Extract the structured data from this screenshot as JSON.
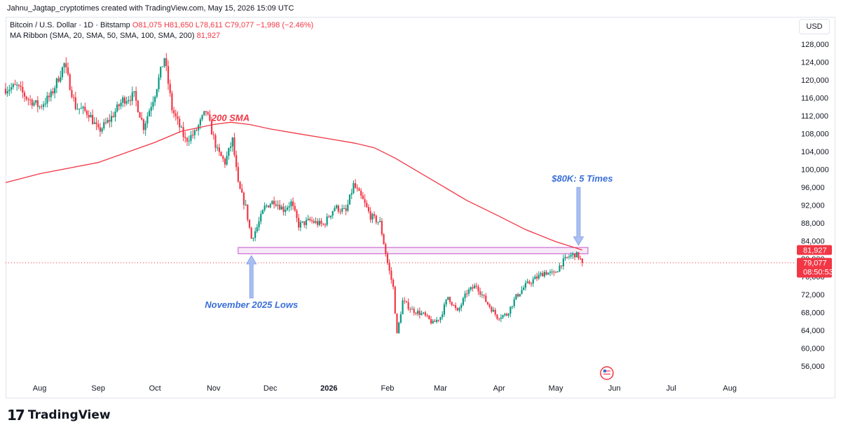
{
  "header": {
    "creator": "Jahnu_Jagtap_cryptotimes created with TradingView.com, May 15, 2026 15:09 UTC",
    "symbol": "Bitcoin / U.S. Dollar · 1D · Bitstamp",
    "ohlc": "O81,075  H81,650  L78,611  C79,077  −1,998 (−2.46%)",
    "indicator_name": "MA Ribbon (SMA, 20, SMA, 50, SMA, 100, SMA, 200)",
    "indicator_value": "81,927",
    "currency": "USD"
  },
  "footer": {
    "brand": "TradingView",
    "logo_mark": "17"
  },
  "colors": {
    "up": "#089981",
    "down": "#f23645",
    "sma": "#f23645",
    "annotation": "#3a6fd8",
    "zone": "#c054c8"
  },
  "chart_data": {
    "type": "candlestick",
    "title": "",
    "y_axis": {
      "range": [
        53000,
        130000
      ],
      "ticks": [
        {
          "value": 56000,
          "label": "56,000"
        },
        {
          "value": 60000,
          "label": "60,000"
        },
        {
          "value": 64000,
          "label": "64,000"
        },
        {
          "value": 68000,
          "label": "68,000"
        },
        {
          "value": 72000,
          "label": "72,000"
        },
        {
          "value": 76000,
          "label": "76,000"
        },
        {
          "value": 80000,
          "label": "80,000"
        },
        {
          "value": 84000,
          "label": "84,000"
        },
        {
          "value": 88000,
          "label": "88,000"
        },
        {
          "value": 92000,
          "label": "92,000"
        },
        {
          "value": 96000,
          "label": "96,000"
        },
        {
          "value": 100000,
          "label": "100,000"
        },
        {
          "value": 104000,
          "label": "104,000"
        },
        {
          "value": 108000,
          "label": "108,000"
        },
        {
          "value": 112000,
          "label": "112,000"
        },
        {
          "value": 116000,
          "label": "116,000"
        },
        {
          "value": 120000,
          "label": "120,000"
        },
        {
          "value": 124000,
          "label": "124,000"
        },
        {
          "value": 128000,
          "label": "128,000"
        }
      ]
    },
    "x_axis": {
      "range": [
        "2025-07-14",
        "2026-09-04"
      ],
      "ticks": [
        {
          "date": "2025-08-01",
          "label": "Aug"
        },
        {
          "date": "2025-09-01",
          "label": "Sep"
        },
        {
          "date": "2025-10-01",
          "label": "Oct"
        },
        {
          "date": "2025-11-01",
          "label": "Nov"
        },
        {
          "date": "2025-12-01",
          "label": "Dec"
        },
        {
          "date": "2026-01-01",
          "label": "2026"
        },
        {
          "date": "2026-02-01",
          "label": "Feb"
        },
        {
          "date": "2026-03-01",
          "label": "Mar"
        },
        {
          "date": "2026-04-01",
          "label": "Apr"
        },
        {
          "date": "2026-05-01",
          "label": "May"
        },
        {
          "date": "2026-06-01",
          "label": "Jun"
        },
        {
          "date": "2026-07-01",
          "label": "Jul"
        },
        {
          "date": "2026-08-01",
          "label": "Aug"
        }
      ]
    },
    "price_series": [
      {
        "date": "2025-07-14",
        "close": 118000
      },
      {
        "date": "2025-07-20",
        "close": 118500
      },
      {
        "date": "2025-07-25",
        "close": 116000
      },
      {
        "date": "2025-08-01",
        "close": 114000
      },
      {
        "date": "2025-08-07",
        "close": 116500
      },
      {
        "date": "2025-08-14",
        "close": 123500
      },
      {
        "date": "2025-08-20",
        "close": 114000
      },
      {
        "date": "2025-08-27",
        "close": 112500
      },
      {
        "date": "2025-09-01",
        "close": 108500
      },
      {
        "date": "2025-09-07",
        "close": 111000
      },
      {
        "date": "2025-09-14",
        "close": 115500
      },
      {
        "date": "2025-09-20",
        "close": 116500
      },
      {
        "date": "2025-09-25",
        "close": 109500
      },
      {
        "date": "2025-10-01",
        "close": 117000
      },
      {
        "date": "2025-10-06",
        "close": 125000
      },
      {
        "date": "2025-10-10",
        "close": 113500
      },
      {
        "date": "2025-10-17",
        "close": 106500
      },
      {
        "date": "2025-10-22",
        "close": 108000
      },
      {
        "date": "2025-10-28",
        "close": 113000
      },
      {
        "date": "2025-11-03",
        "close": 104000
      },
      {
        "date": "2025-11-07",
        "close": 101500
      },
      {
        "date": "2025-11-11",
        "close": 106500
      },
      {
        "date": "2025-11-14",
        "close": 96500
      },
      {
        "date": "2025-11-18",
        "close": 91500
      },
      {
        "date": "2025-11-21",
        "close": 84500
      },
      {
        "date": "2025-11-24",
        "close": 87000
      },
      {
        "date": "2025-11-28",
        "close": 91500
      },
      {
        "date": "2025-12-03",
        "close": 93000
      },
      {
        "date": "2025-12-08",
        "close": 91000
      },
      {
        "date": "2025-12-12",
        "close": 92500
      },
      {
        "date": "2025-12-16",
        "close": 87500
      },
      {
        "date": "2025-12-22",
        "close": 88500
      },
      {
        "date": "2025-12-29",
        "close": 87500
      },
      {
        "date": "2026-01-04",
        "close": 91500
      },
      {
        "date": "2026-01-10",
        "close": 90500
      },
      {
        "date": "2026-01-14",
        "close": 96500
      },
      {
        "date": "2026-01-19",
        "close": 93000
      },
      {
        "date": "2026-01-23",
        "close": 89500
      },
      {
        "date": "2026-01-28",
        "close": 88000
      },
      {
        "date": "2026-02-01",
        "close": 79000
      },
      {
        "date": "2026-02-04",
        "close": 73500
      },
      {
        "date": "2026-02-06",
        "close": 63000
      },
      {
        "date": "2026-02-09",
        "close": 70500
      },
      {
        "date": "2026-02-14",
        "close": 68500
      },
      {
        "date": "2026-02-20",
        "close": 67500
      },
      {
        "date": "2026-02-25",
        "close": 65500
      },
      {
        "date": "2026-03-01",
        "close": 67000
      },
      {
        "date": "2026-03-05",
        "close": 71500
      },
      {
        "date": "2026-03-10",
        "close": 68000
      },
      {
        "date": "2026-03-15",
        "close": 72500
      },
      {
        "date": "2026-03-20",
        "close": 74000
      },
      {
        "date": "2026-03-25",
        "close": 70500
      },
      {
        "date": "2026-03-31",
        "close": 67000
      },
      {
        "date": "2026-04-05",
        "close": 67500
      },
      {
        "date": "2026-04-10",
        "close": 71500
      },
      {
        "date": "2026-04-15",
        "close": 74000
      },
      {
        "date": "2026-04-20",
        "close": 75500
      },
      {
        "date": "2026-04-25",
        "close": 77000
      },
      {
        "date": "2026-04-30",
        "close": 76500
      },
      {
        "date": "2026-05-04",
        "close": 79000
      },
      {
        "date": "2026-05-08",
        "close": 80500
      },
      {
        "date": "2026-05-11",
        "close": 81000
      },
      {
        "date": "2026-05-13",
        "close": 80500
      },
      {
        "date": "2026-05-15",
        "close": 79077
      }
    ],
    "sma200": [
      {
        "date": "2025-07-14",
        "value": 97000
      },
      {
        "date": "2025-08-01",
        "value": 99000
      },
      {
        "date": "2025-09-01",
        "value": 101500
      },
      {
        "date": "2025-10-01",
        "value": 106000
      },
      {
        "date": "2025-10-15",
        "value": 108500
      },
      {
        "date": "2025-11-01",
        "value": 110000
      },
      {
        "date": "2025-11-10",
        "value": 110500
      },
      {
        "date": "2025-11-20",
        "value": 110000
      },
      {
        "date": "2025-12-01",
        "value": 109000
      },
      {
        "date": "2025-12-15",
        "value": 108000
      },
      {
        "date": "2026-01-01",
        "value": 106800
      },
      {
        "date": "2026-01-15",
        "value": 105800
      },
      {
        "date": "2026-01-25",
        "value": 104800
      },
      {
        "date": "2026-02-05",
        "value": 102500
      },
      {
        "date": "2026-02-15",
        "value": 100000
      },
      {
        "date": "2026-03-01",
        "value": 96500
      },
      {
        "date": "2026-03-15",
        "value": 93000
      },
      {
        "date": "2026-04-01",
        "value": 89500
      },
      {
        "date": "2026-04-15",
        "value": 86500
      },
      {
        "date": "2026-05-01",
        "value": 83800
      },
      {
        "date": "2026-05-15",
        "value": 81927
      }
    ],
    "support_zone": {
      "from_date": "2025-11-14",
      "to_date": "2026-05-18",
      "low": 81100,
      "high": 82500
    },
    "annotations": [
      {
        "text": "200 SMA",
        "date": "2025-11-10",
        "value": 110800
      },
      {
        "text": "$80K: 5 Times",
        "date": "2026-05-15",
        "value": 97200,
        "arrow_to_date": "2026-05-13",
        "arrow_to_value": 83000
      },
      {
        "text": "November 2025 Lows",
        "date": "2025-11-21",
        "value": 69000,
        "arrow_to_date": "2025-11-21",
        "arrow_to_value": 80700
      }
    ],
    "price_labels": [
      {
        "text": "81,927",
        "value": 81927,
        "color": "#f23645"
      },
      {
        "text": "79,077",
        "subtext": "08:50:53",
        "value": 79077,
        "color": "#f23645"
      }
    ],
    "last_price": 79077
  }
}
